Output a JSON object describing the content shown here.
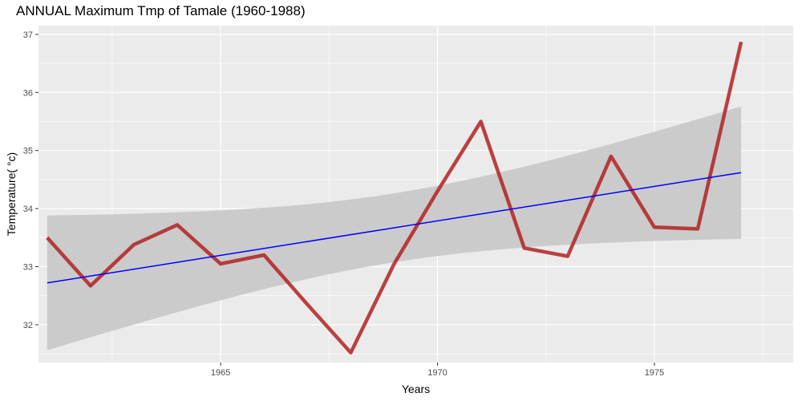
{
  "chart_data": {
    "type": "line",
    "title": "ANNUAL Maximum Tmp of Tamale (1960-1988)",
    "xlabel": "Years",
    "ylabel": "Temperature( °c)",
    "xlim": [
      1960.8,
      1978.2
    ],
    "ylim": [
      31.35,
      37.15
    ],
    "x_ticks": [
      1965,
      1970,
      1975
    ],
    "y_ticks": [
      32,
      33,
      34,
      35,
      36,
      37
    ],
    "grid": true,
    "series": [
      {
        "x": [
          1961,
          1962,
          1963,
          1964,
          1965,
          1966,
          1967,
          1968,
          1969,
          1970,
          1971,
          1972,
          1973,
          1974,
          1975,
          1976,
          1977
        ],
        "values": [
          33.5,
          32.67,
          33.38,
          33.72,
          33.05,
          33.2,
          32.35,
          31.52,
          33.05,
          34.3,
          35.5,
          33.32,
          33.18,
          34.9,
          33.68,
          33.65,
          36.87
        ],
        "color": "#b22222"
      }
    ],
    "trend": {
      "x": [
        1961,
        1977
      ],
      "values": [
        32.72,
        34.62
      ],
      "color": "#0000ff",
      "ci_lower": [
        31.57,
        33.48
      ],
      "ci_upper": [
        33.88,
        35.76
      ],
      "ci_color": "#cbcbcb"
    },
    "colors": {
      "panel_background": "#ebebeb",
      "grid_major": "#ffffff"
    }
  }
}
